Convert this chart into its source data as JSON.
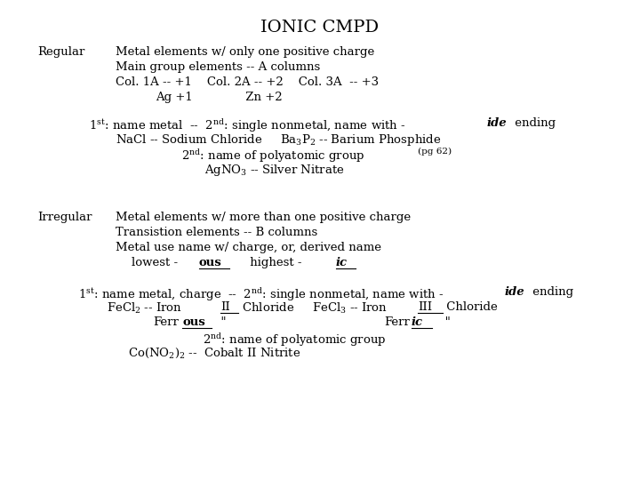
{
  "title": "IONIC CMPD",
  "bg_color": "#ffffff",
  "text_color": "#000000",
  "figsize": [
    7.2,
    5.4
  ],
  "dpi": 100,
  "font_size": 9.5,
  "title_font_size": 14
}
